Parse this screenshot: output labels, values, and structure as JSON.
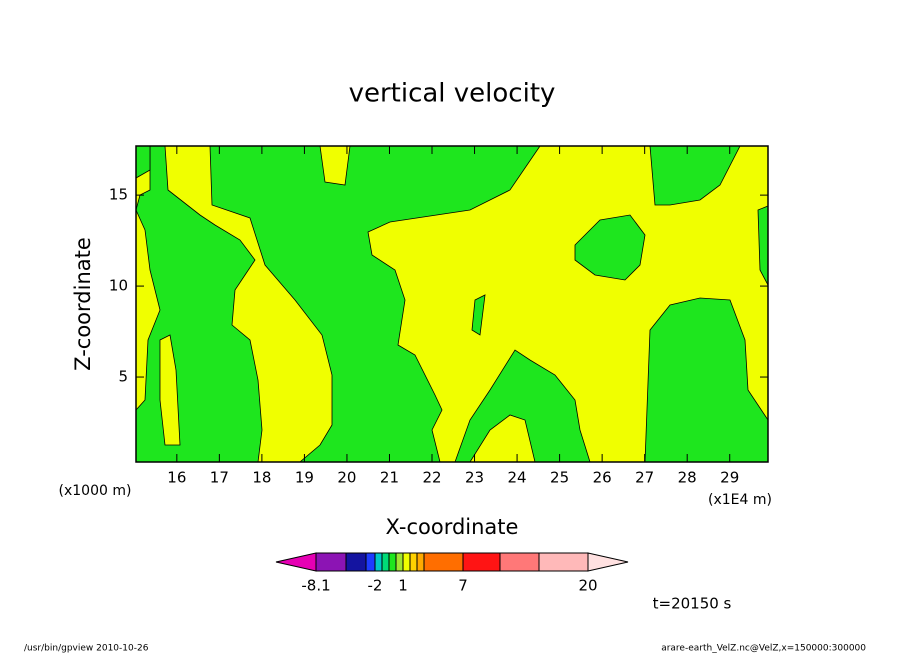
{
  "chart_data": {
    "type": "contour",
    "title": "vertical velocity",
    "xlabel": "X-coordinate",
    "ylabel": "Z-coordinate",
    "x_unit": "(x1E4 m)",
    "y_unit": "(x1000 m)",
    "xlim": [
      15.04,
      29.9
    ],
    "ylim": [
      0.33,
      17.7
    ],
    "xticks": [
      16,
      17,
      18,
      19,
      20,
      21,
      22,
      23,
      24,
      25,
      26,
      27,
      28,
      29
    ],
    "yticks": [
      5,
      10,
      15
    ],
    "colorbar": {
      "colors": [
        "#e600b4",
        "#8c14b4",
        "#1414a0",
        "#1e3cff",
        "#00c8c8",
        "#00dc78",
        "#1ee61e",
        "#a0e632",
        "#f0ff00",
        "#ffd200",
        "#ffaa00",
        "#ff6e00",
        "#ff1414",
        "#ff7878",
        "#ffb9b9",
        "#ffe1e1"
      ],
      "levels": [
        -8.1,
        null,
        null,
        -2,
        null,
        null,
        null,
        1,
        null,
        null,
        null,
        7,
        null,
        null,
        20
      ]
    },
    "time_label": "t=20150 s",
    "footer_left": "/usr/bin/gpview  2010-10-26",
    "footer_right": "arare-earth_VelZ.nc@VelZ,x=150000:300000"
  }
}
